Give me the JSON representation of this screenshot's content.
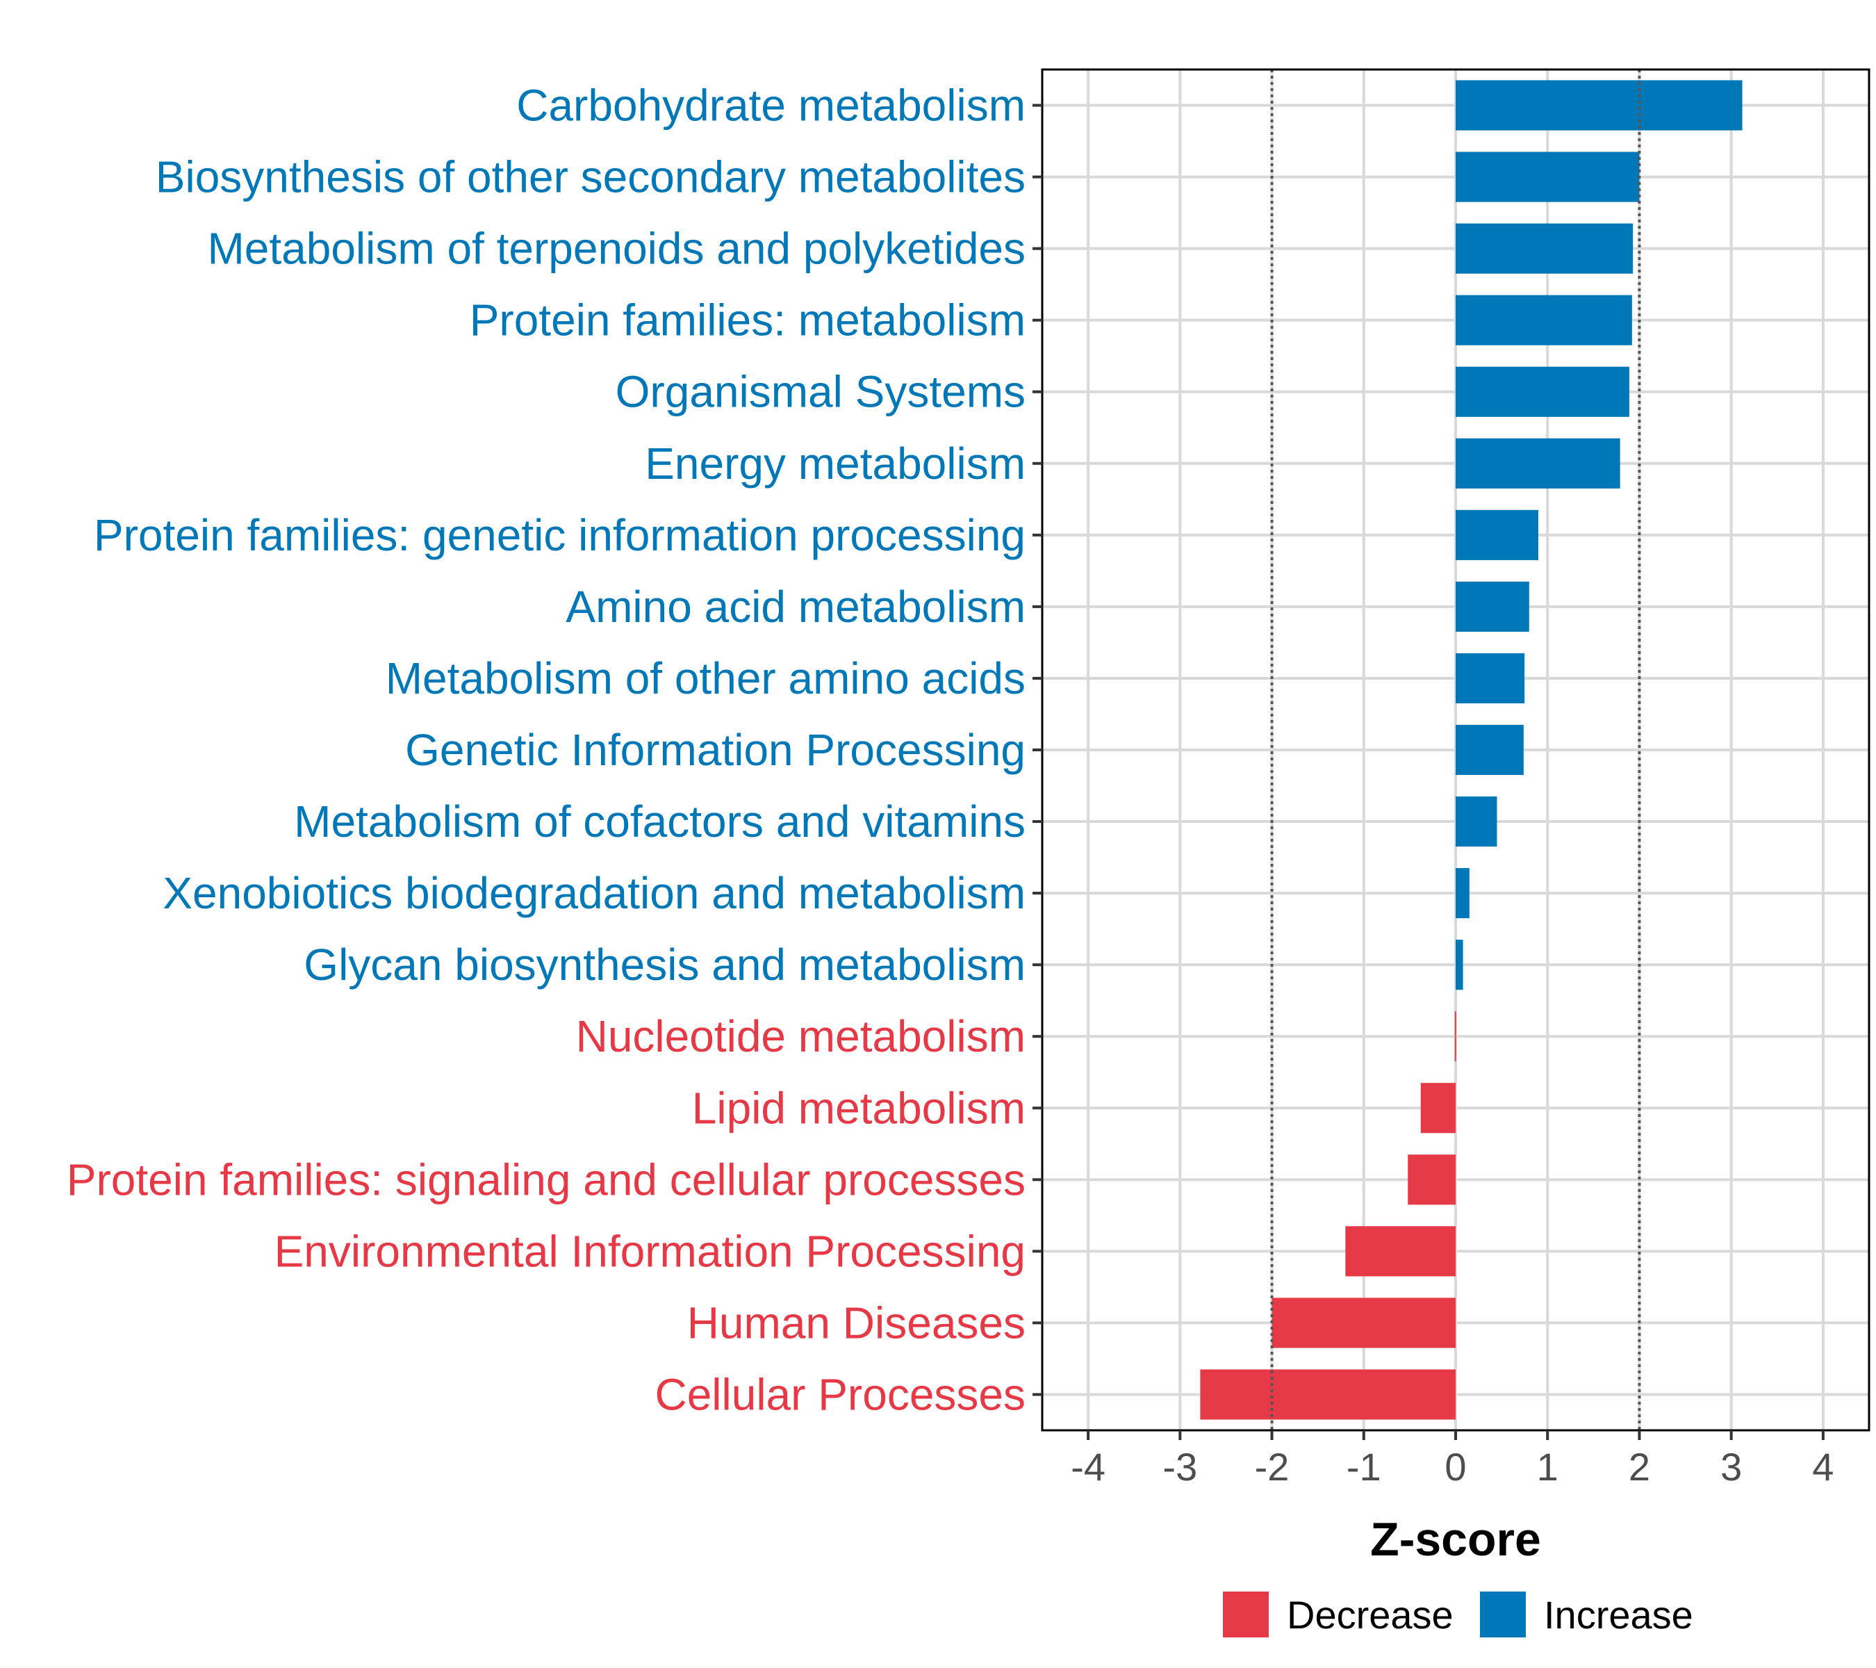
{
  "chart_data": {
    "type": "bar",
    "orientation": "horizontal",
    "categories": [
      "Carbohydrate metabolism",
      "Biosynthesis of other secondary metabolites",
      "Metabolism of terpenoids and polyketides",
      "Protein families: metabolism",
      "Organismal Systems",
      "Energy metabolism",
      "Protein families: genetic information processing",
      "Amino acid metabolism",
      "Metabolism of other amino acids",
      "Genetic Information Processing",
      "Metabolism of cofactors and vitamins",
      "Xenobiotics biodegradation and metabolism",
      "Glycan biosynthesis and metabolism",
      "Nucleotide metabolism",
      "Lipid metabolism",
      "Protein families: signaling and cellular processes",
      "Environmental Information Processing",
      "Human Diseases",
      "Cellular Processes"
    ],
    "values": [
      3.12,
      2.0,
      1.93,
      1.92,
      1.89,
      1.79,
      0.9,
      0.8,
      0.75,
      0.74,
      0.45,
      0.15,
      0.08,
      -0.01,
      -0.38,
      -0.52,
      -1.2,
      -2.0,
      -2.78
    ],
    "groups": [
      "Increase",
      "Increase",
      "Increase",
      "Increase",
      "Increase",
      "Increase",
      "Increase",
      "Increase",
      "Increase",
      "Increase",
      "Increase",
      "Increase",
      "Increase",
      "Decrease",
      "Decrease",
      "Decrease",
      "Decrease",
      "Decrease",
      "Decrease"
    ],
    "xlabel": "Z-score",
    "ylabel": "",
    "xlim": [
      -4.5,
      4.5
    ],
    "xticks": [
      -4,
      -3,
      -2,
      -1,
      0,
      1,
      2,
      3,
      4
    ],
    "xtick_labels": [
      "-4",
      "-3",
      "-2",
      "-1",
      "0",
      "1",
      "2",
      "3",
      "4"
    ],
    "reference_lines": [
      -2,
      2
    ],
    "grid": true,
    "legend": {
      "position": "bottom",
      "entries": [
        {
          "label": "Decrease",
          "color": "#E63946"
        },
        {
          "label": "Increase",
          "color": "#0077B6"
        }
      ]
    },
    "colors": {
      "Increase": "#0077B6",
      "Decrease": "#E63946",
      "grid": "#D9D9D9",
      "reference_line": "#555555",
      "axis_frame": "#000000"
    }
  }
}
